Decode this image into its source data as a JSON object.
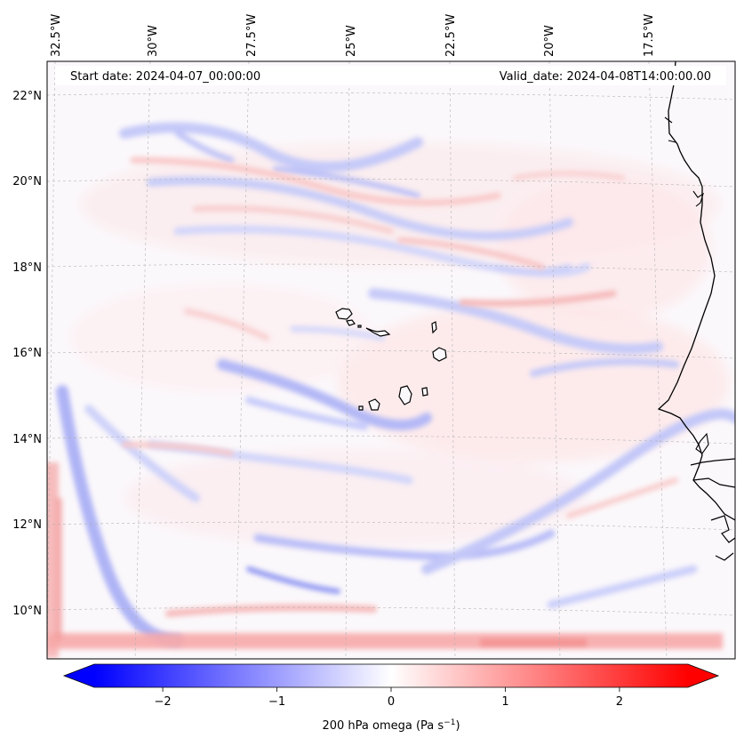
{
  "map": {
    "start_date_label": "Start date: 2024-04-07_00:00:00",
    "valid_date_label": "Valid_date: 2024-04-08T14:00:00.00",
    "lon_labels": [
      "32.5°W",
      "30°W",
      "27.5°W",
      "25°W",
      "22.5°W",
      "20°W",
      "17.5°W"
    ],
    "lat_labels": [
      "22°N",
      "20°N",
      "18°N",
      "16°N",
      "14°N",
      "12°N",
      "10°N"
    ],
    "field_colors": {
      "positive": "#ff0000",
      "negative": "#0000ff",
      "coastline": "#000000",
      "gridline": "#b0b0b0"
    }
  },
  "colorbar": {
    "ticks": [
      "−2",
      "−1",
      "0",
      "1",
      "2"
    ],
    "tick_values": [
      -2,
      -1,
      0,
      1,
      2
    ],
    "range": [
      -2.6,
      2.6
    ],
    "label_main": "200 hPa omega (Pa s",
    "label_exp": "−1",
    "label_close": ")",
    "cmap": "bwr"
  }
}
